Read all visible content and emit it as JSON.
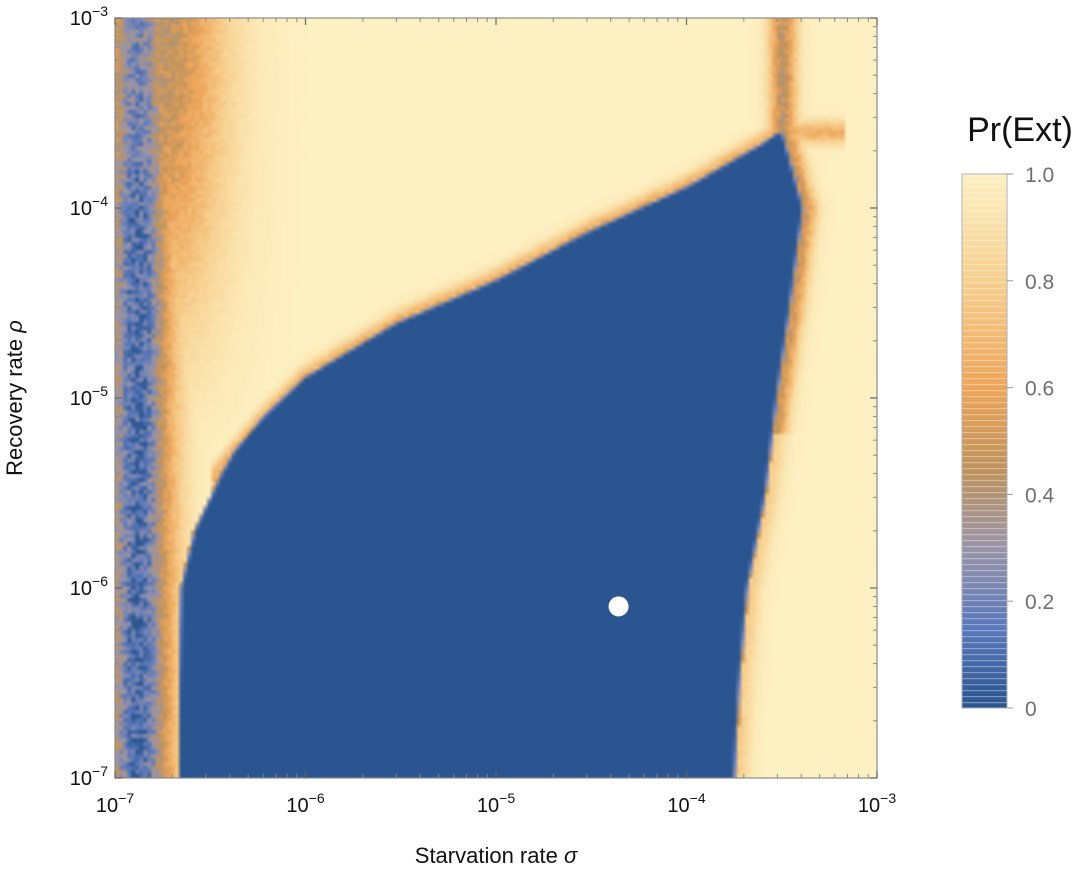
{
  "chart_data": {
    "type": "heatmap",
    "title": "",
    "xlabel": {
      "text": "Starvation rate ",
      "symbol": "σ"
    },
    "ylabel": {
      "text": "Recovery rate ",
      "symbol": "ρ"
    },
    "x_scale": "log",
    "y_scale": "log",
    "xlim": [
      1e-07,
      0.001
    ],
    "ylim": [
      1e-07,
      0.001
    ],
    "x_ticks": [
      {
        "base": "10",
        "exp": "−7",
        "value": 1e-07
      },
      {
        "base": "10",
        "exp": "−6",
        "value": 1e-06
      },
      {
        "base": "10",
        "exp": "−5",
        "value": 1e-05
      },
      {
        "base": "10",
        "exp": "−4",
        "value": 0.0001
      },
      {
        "base": "10",
        "exp": "−3",
        "value": 0.001
      }
    ],
    "y_ticks": [
      {
        "base": "10",
        "exp": "−7",
        "value": 1e-07
      },
      {
        "base": "10",
        "exp": "−6",
        "value": 1e-06
      },
      {
        "base": "10",
        "exp": "−5",
        "value": 1e-05
      },
      {
        "base": "10",
        "exp": "−4",
        "value": 0.0001
      },
      {
        "base": "10",
        "exp": "−3",
        "value": 0.001
      }
    ],
    "colorbar": {
      "title": "Pr(Ext)",
      "range": [
        0,
        1
      ],
      "ticks": [
        {
          "label": "0",
          "value": 0
        },
        {
          "label": "0.2",
          "value": 0.2
        },
        {
          "label": "0.4",
          "value": 0.4
        },
        {
          "label": "0.6",
          "value": 0.6
        },
        {
          "label": "0.8",
          "value": 0.8
        },
        {
          "label": "1.0",
          "value": 1.0
        }
      ],
      "colors": [
        {
          "value": 0.0,
          "color": "#2a5590"
        },
        {
          "value": 0.15,
          "color": "#5a78bb"
        },
        {
          "value": 0.3,
          "color": "#9a94a8"
        },
        {
          "value": 0.45,
          "color": "#c0935c"
        },
        {
          "value": 0.6,
          "color": "#eda55a"
        },
        {
          "value": 0.8,
          "color": "#f7cf8e"
        },
        {
          "value": 1.0,
          "color": "#fdf0c2"
        }
      ]
    },
    "marker": {
      "x": 4.4e-05,
      "y": 8e-07,
      "color": "#ffffff"
    },
    "regions": {
      "low_extinction_boundary": {
        "description": "Pr(Ext)≈0 region",
        "left_sigma": [
          [
            1e-07,
            2.1e-07
          ],
          [
            1e-06,
            2.2e-07
          ],
          [
            2e-06,
            2.6e-07
          ],
          [
            4e-06,
            3.6e-07
          ],
          [
            1e-05,
            6e-07
          ],
          [
            3e-05,
            1.3e-06
          ],
          [
            0.0001,
            3.2e-06
          ],
          [
            0.00018,
            6e-06
          ]
        ],
        "upper_rho": [
          [
            2.2e-07,
            2e-06
          ],
          [
            3e-07,
            3.5e-06
          ],
          [
            6e-07,
            8e-06
          ],
          [
            1e-06,
            1.3e-05
          ],
          [
            3e-06,
            2.5e-05
          ],
          [
            1e-05,
            4.2e-05
          ],
          [
            3e-05,
            7.5e-05
          ],
          [
            0.0001,
            0.00013
          ],
          [
            0.00025,
            0.00022
          ],
          [
            0.0003,
            0.00025
          ]
        ],
        "right_sigma": [
          [
            1e-07,
            0.00018
          ],
          [
            3e-07,
            0.00019
          ],
          [
            1e-06,
            0.00021
          ],
          [
            3e-06,
            0.00026
          ],
          [
            1e-05,
            0.0003
          ],
          [
            3e-05,
            0.00035
          ],
          [
            0.0001,
            0.00041
          ],
          [
            0.00025,
            0.00032
          ]
        ]
      }
    }
  }
}
